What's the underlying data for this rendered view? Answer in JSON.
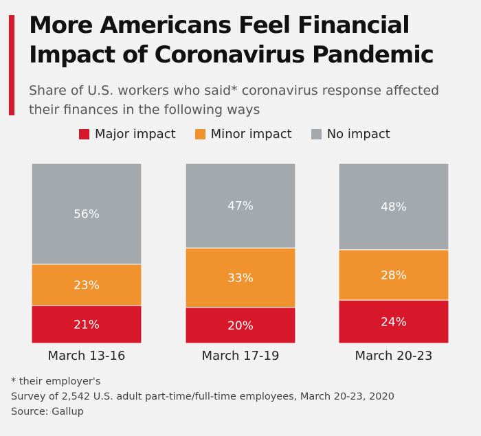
{
  "title": "More Americans Feel Financial Impact of Coronavirus Pandemic",
  "subtitle": "Share of U.S. workers who said* coronavirus response affected their finances in the following ways",
  "legend": [
    {
      "label": "Major impact",
      "color": "#d7182a"
    },
    {
      "label": "Minor impact",
      "color": "#f0922e"
    },
    {
      "label": "No impact",
      "color": "#a4a9ad"
    }
  ],
  "chart_data": {
    "type": "bar",
    "stacked": true,
    "categories": [
      "March 13-16",
      "March 17-19",
      "March 20-23"
    ],
    "series": [
      {
        "name": "Major impact",
        "values": [
          21,
          20,
          24
        ],
        "labels": [
          "21%",
          "20%",
          "24%"
        ],
        "color": "#d7182a"
      },
      {
        "name": "Minor impact",
        "values": [
          23,
          33,
          28
        ],
        "labels": [
          "23%",
          "33%",
          "28%"
        ],
        "color": "#f0922e"
      },
      {
        "name": "No impact",
        "values": [
          56,
          47,
          48
        ],
        "labels": [
          "56%",
          "47%",
          "48%"
        ],
        "color": "#a4a9ad"
      }
    ],
    "ylim": [
      0,
      100
    ],
    "grid": false,
    "legend_position": "top"
  },
  "footer": {
    "note": "* their employer's",
    "survey": "Survey of 2,542 U.S. adult part-time/full-time employees, March 20-23, 2020",
    "source": "Source: Gallup"
  }
}
